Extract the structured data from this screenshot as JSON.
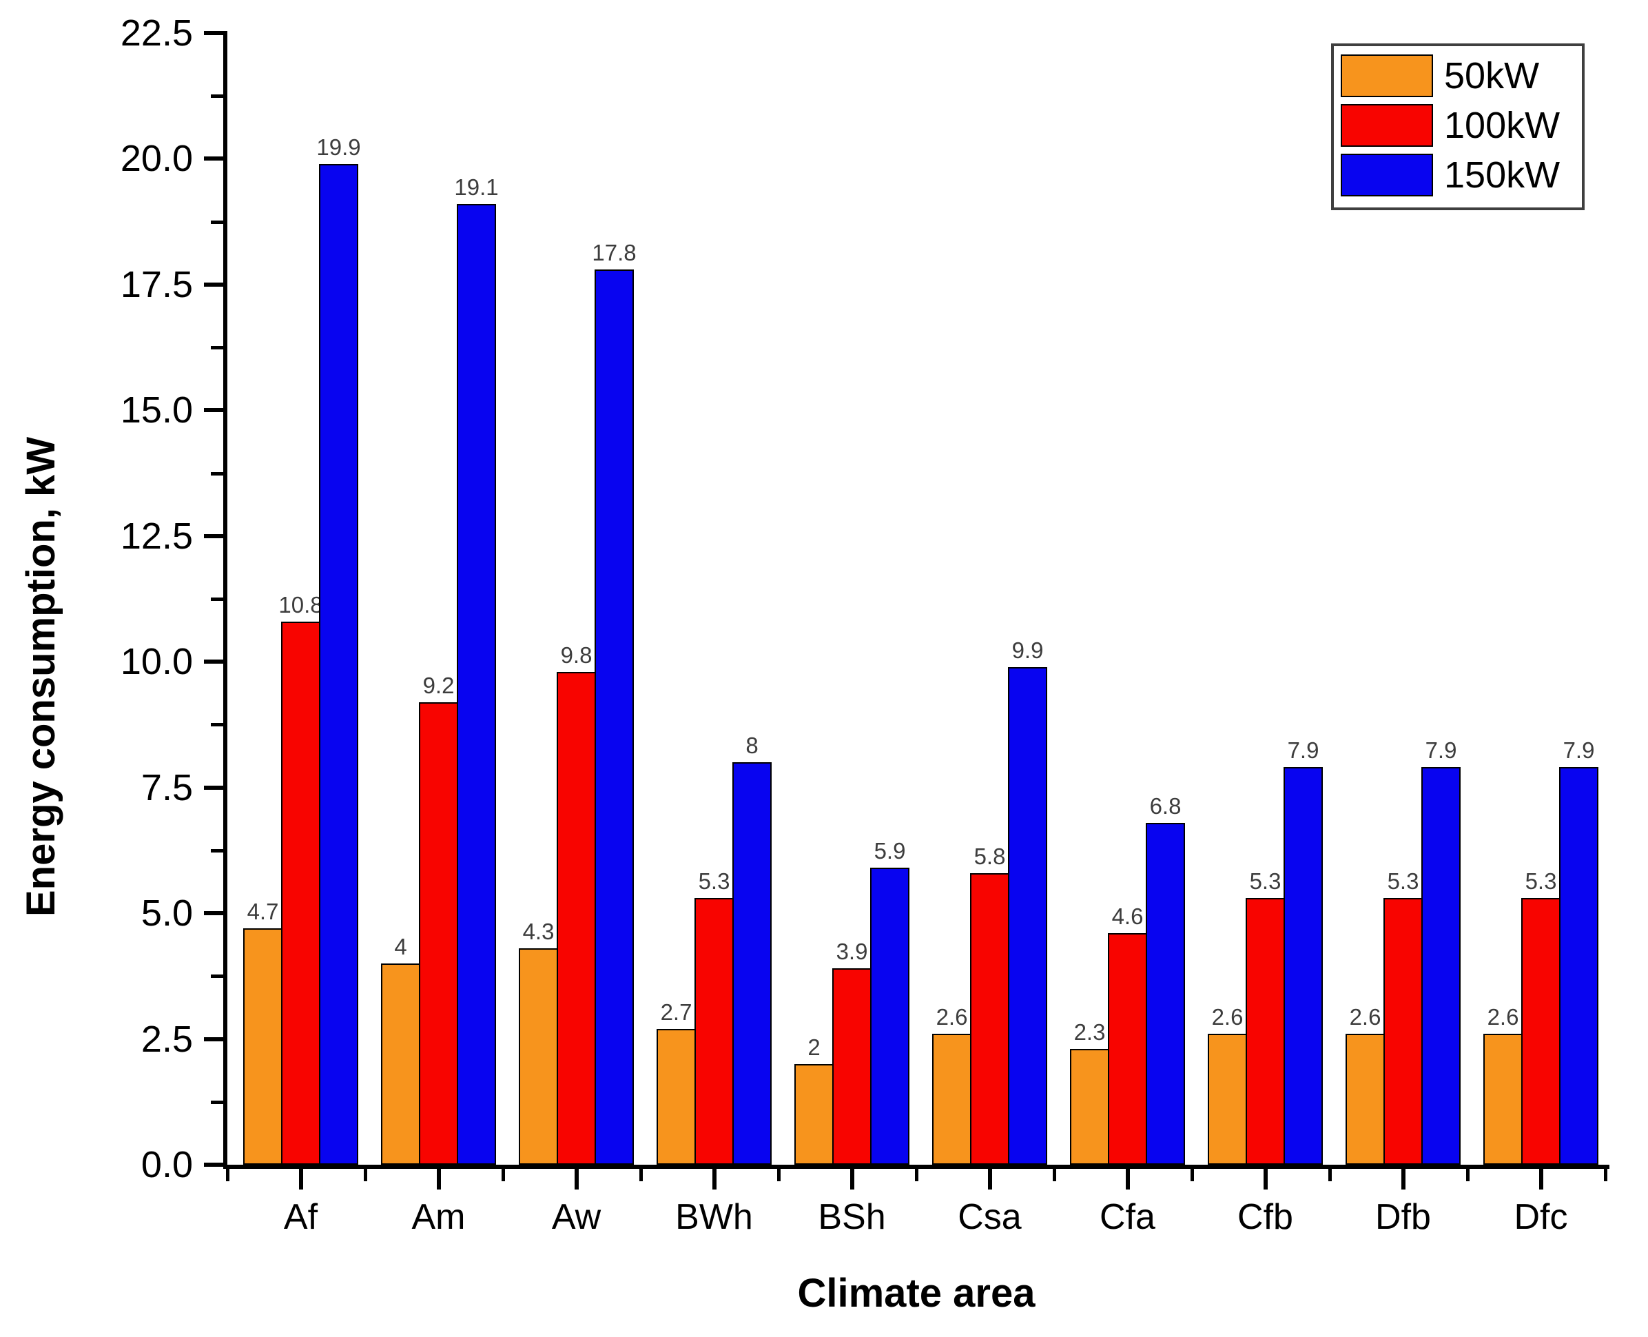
{
  "page": {
    "background": "#ffffff"
  },
  "chart_data": {
    "type": "bar",
    "title": "",
    "xlabel": "Climate area",
    "ylabel": "Energy consumption, kW",
    "categories": [
      "Af",
      "Am",
      "Aw",
      "BWh",
      "BSh",
      "Csa",
      "Cfa",
      "Cfb",
      "Dfb",
      "Dfc"
    ],
    "series": [
      {
        "name": "50kW",
        "color": "#F7941D",
        "values": [
          4.7,
          4,
          4.3,
          2.7,
          2,
          2.6,
          2.3,
          2.6,
          2.6,
          2.6
        ]
      },
      {
        "name": "100kW",
        "color": "#F80400",
        "values": [
          10.8,
          9.2,
          9.8,
          5.3,
          3.9,
          5.8,
          4.6,
          5.3,
          5.3,
          5.3
        ]
      },
      {
        "name": "150kW",
        "color": "#0804F0",
        "values": [
          19.9,
          19.1,
          17.8,
          8,
          5.9,
          9.9,
          6.8,
          7.9,
          7.9,
          7.9
        ]
      }
    ],
    "ylim": [
      0,
      22.5
    ],
    "ytick_step": 2.5,
    "yminor_step": 1.25,
    "ytick_labels": [
      "0.0",
      "2.5",
      "5.0",
      "7.5",
      "10.0",
      "12.5",
      "15.0",
      "17.5",
      "20.0",
      "22.5"
    ],
    "bar_value_labels_shown": true,
    "grid": false,
    "legend_position": "top-right",
    "bar_outline_color": "#000000",
    "axis_color": "#000000",
    "value_label_color": "#3d3d3d"
  }
}
